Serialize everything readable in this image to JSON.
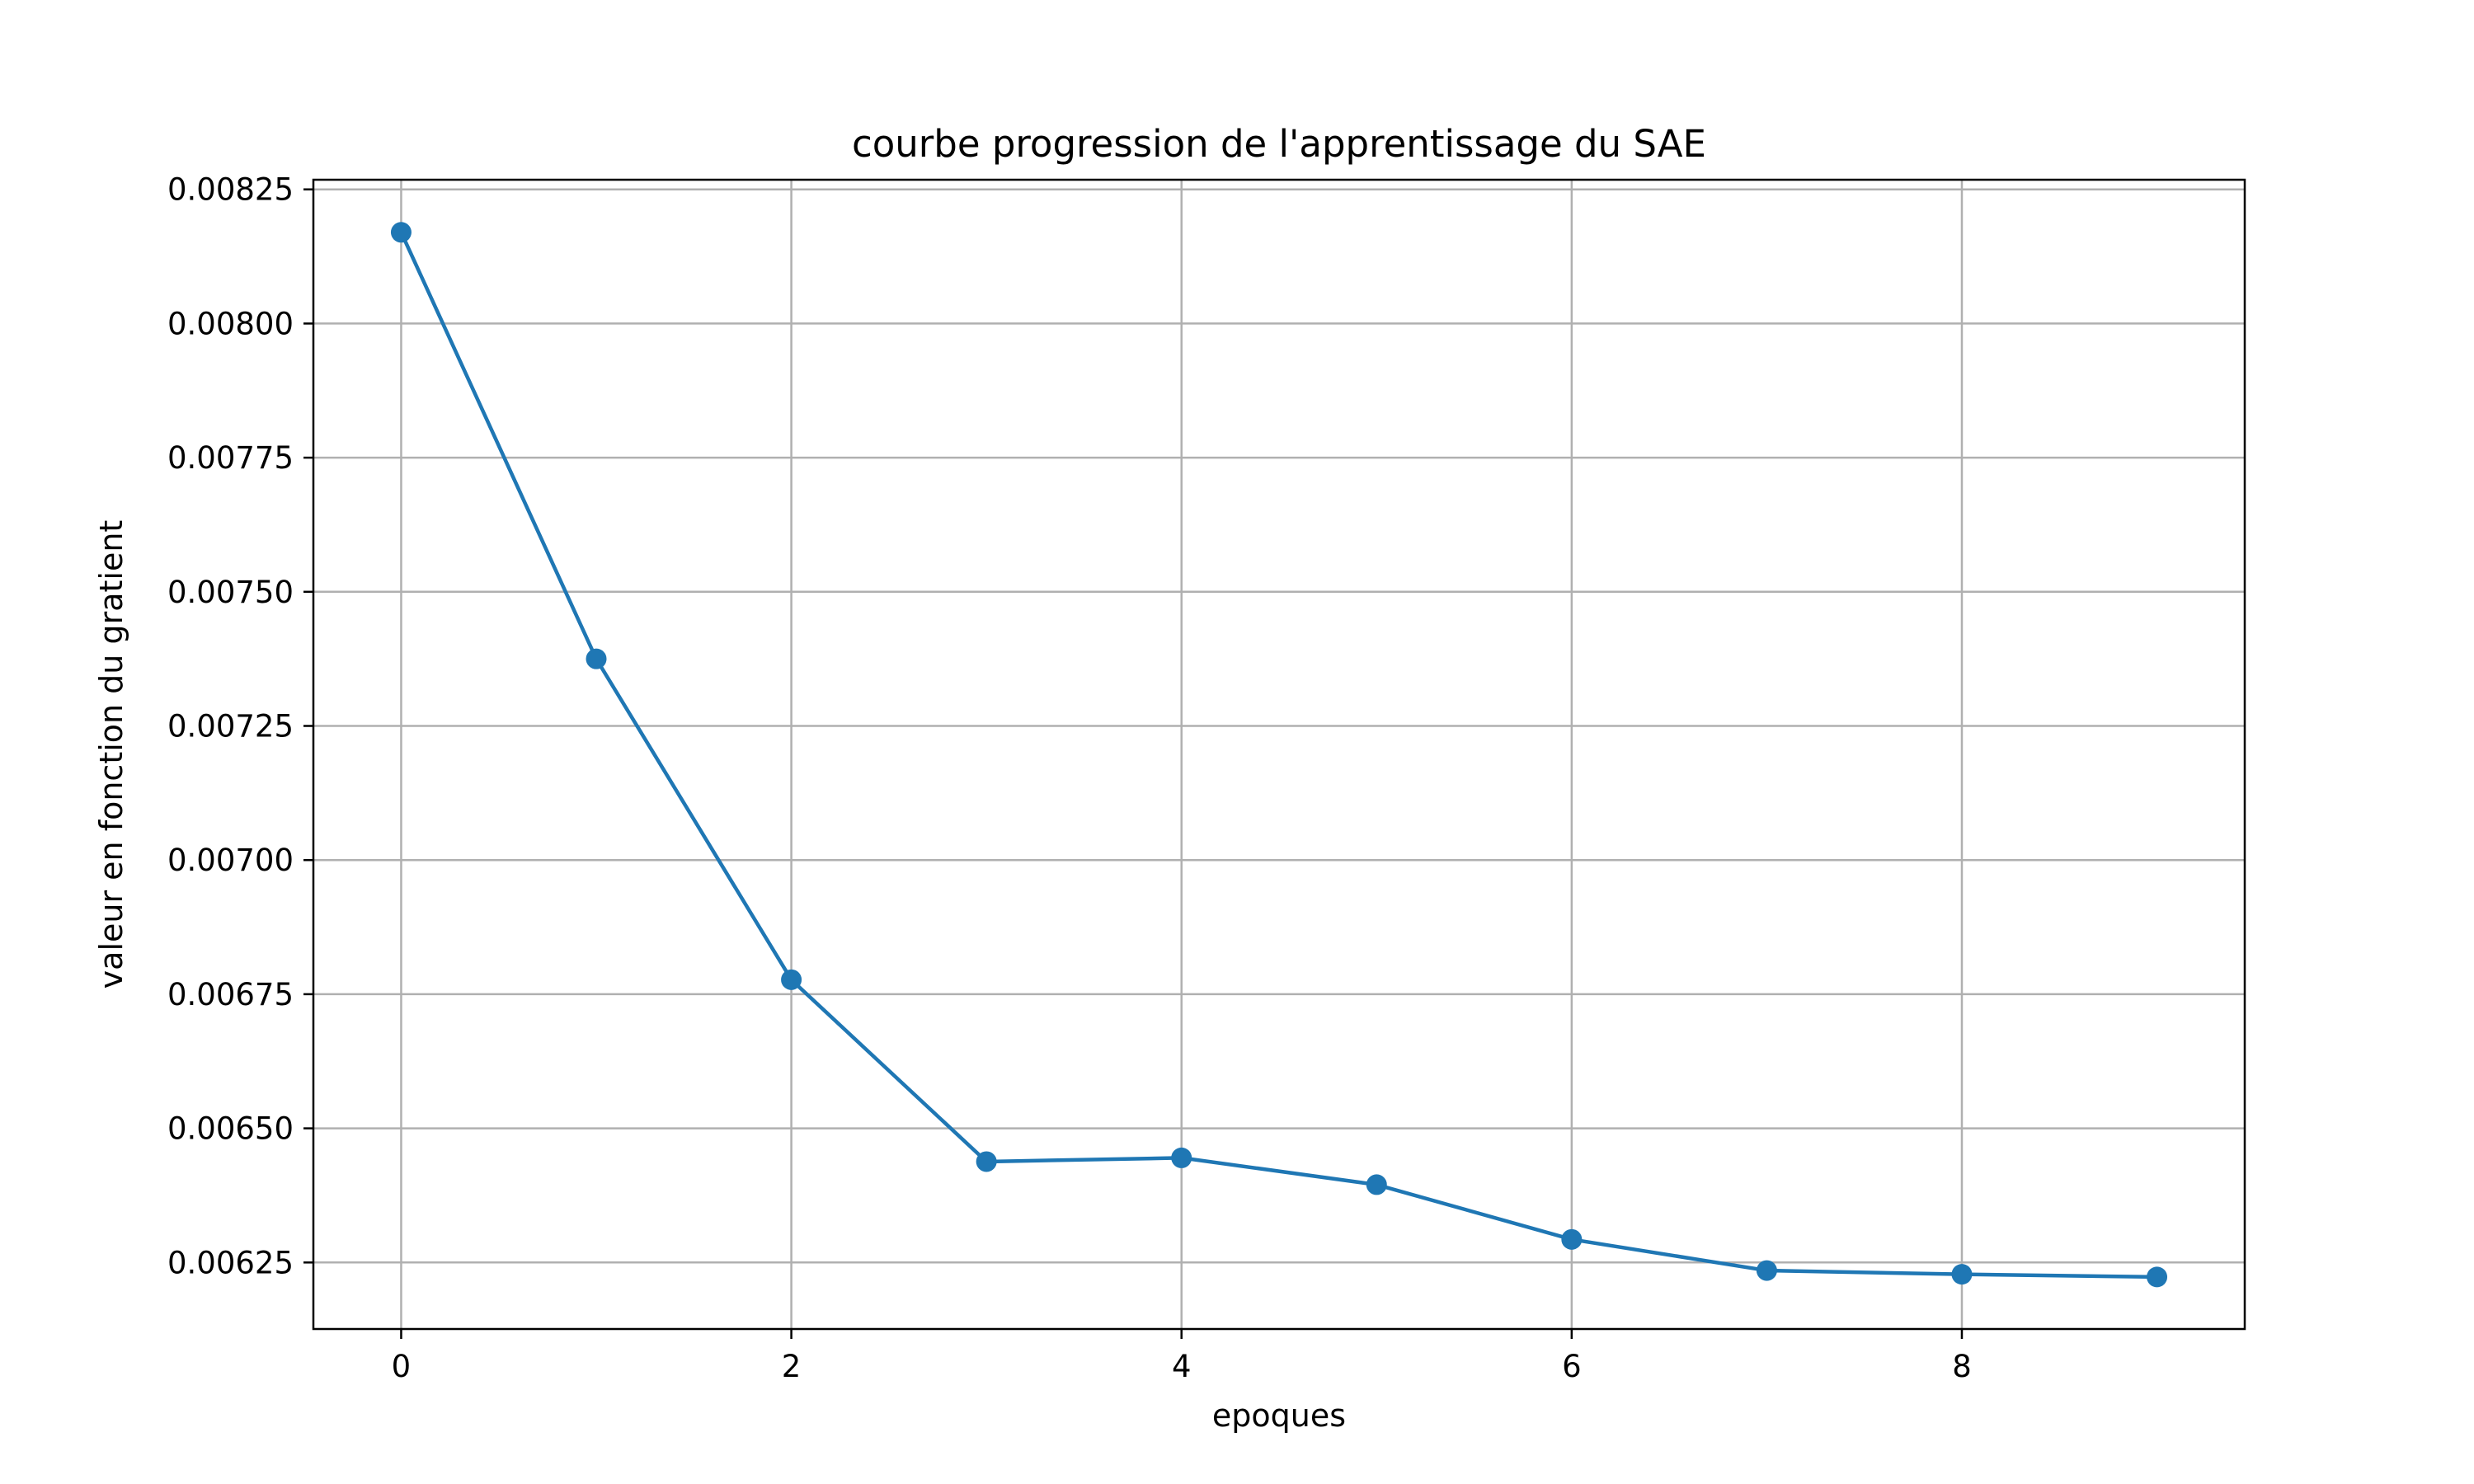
{
  "chart_data": {
    "type": "line",
    "title": "courbe progression de l'apprentissage du SAE",
    "xlabel": "epoques",
    "ylabel": "valeur en fonction du gratient",
    "x": [
      0,
      1,
      2,
      3,
      4,
      5,
      6,
      7,
      8,
      9
    ],
    "series": [
      {
        "values": [
          0.00817,
          0.007375,
          0.006777,
          0.006438,
          0.006445,
          0.006395,
          0.006293,
          0.006235,
          0.006228,
          0.006223
        ],
        "color": "#1f77b4",
        "marker": "circle"
      }
    ],
    "xticks": [
      0,
      2,
      4,
      6,
      8
    ],
    "xtick_labels": [
      "0",
      "2",
      "4",
      "6",
      "8"
    ],
    "yticks": [
      0.00625,
      0.0065,
      0.00675,
      0.007,
      0.00725,
      0.0075,
      0.00775,
      0.008,
      0.00825
    ],
    "ytick_labels": [
      "0.00625",
      "0.00650",
      "0.00675",
      "0.00700",
      "0.00725",
      "0.00750",
      "0.00775",
      "0.00800",
      "0.00825"
    ],
    "xlim": [
      -0.45,
      9.45
    ],
    "ylim": [
      0.006126,
      0.008268
    ],
    "grid": true,
    "legend": "none"
  }
}
